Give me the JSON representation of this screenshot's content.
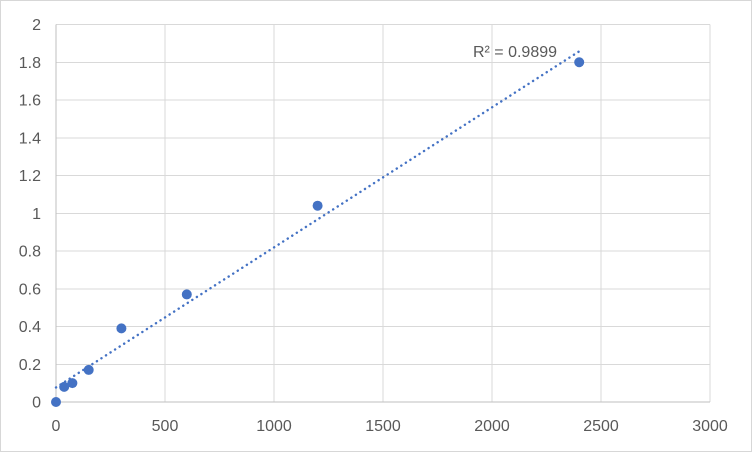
{
  "chart_data": {
    "type": "scatter",
    "points": [
      {
        "x": 0,
        "y": 0.0
      },
      {
        "x": 37.5,
        "y": 0.08
      },
      {
        "x": 75,
        "y": 0.1
      },
      {
        "x": 150,
        "y": 0.17
      },
      {
        "x": 300,
        "y": 0.39
      },
      {
        "x": 600,
        "y": 0.57
      },
      {
        "x": 1200,
        "y": 1.04
      },
      {
        "x": 2400,
        "y": 1.8
      }
    ],
    "trendline": {
      "type": "linear",
      "style": "dotted",
      "slope": 0.000742,
      "intercept": 0.077,
      "x_start": 0,
      "x_end": 2400
    },
    "r_squared_label": "R² = 0.9899",
    "xlim": [
      0,
      3000
    ],
    "ylim": [
      0,
      2
    ],
    "x_tick_labels": [
      "0",
      "500",
      "1000",
      "1500",
      "2000",
      "2500",
      "3000"
    ],
    "y_tick_labels": [
      "0",
      "0.2",
      "0.4",
      "0.6",
      "0.8",
      "1",
      "1.2",
      "1.4",
      "1.6",
      "1.8",
      "2"
    ],
    "title": "",
    "xlabel": "",
    "ylabel": "",
    "grid": true,
    "legend": "none",
    "colors": {
      "marker": "#4472C4",
      "trendline": "#4472C4",
      "gridline": "#D9D9D9",
      "axis_line": "#BFBFBF",
      "tick_text": "#595959",
      "background": "#FFFFFF",
      "frame_border": "#D7D7D7"
    }
  }
}
